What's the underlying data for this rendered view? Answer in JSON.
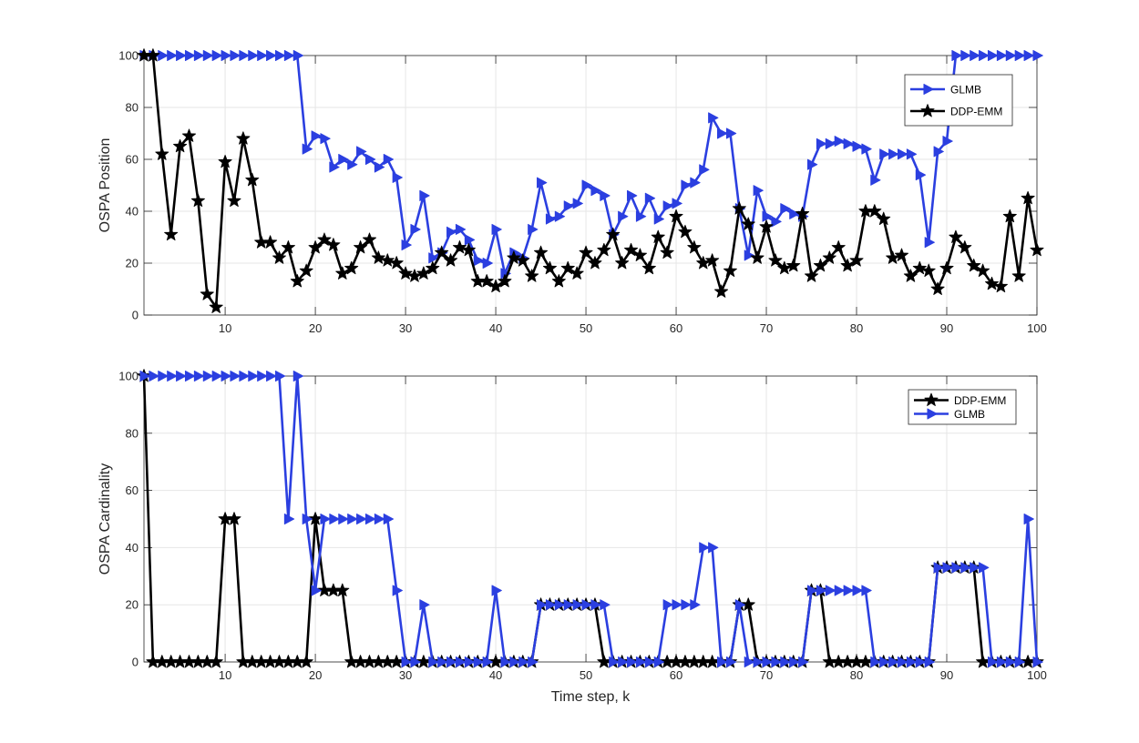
{
  "chart_data": [
    {
      "type": "line",
      "xlabel": "",
      "ylabel": "OSPA Position",
      "xlim": [
        1,
        100
      ],
      "ylim": [
        0,
        100
      ],
      "xticks": [
        10,
        20,
        30,
        40,
        50,
        60,
        70,
        80,
        90,
        100
      ],
      "yticks": [
        0,
        20,
        40,
        60,
        80,
        100
      ],
      "grid": true,
      "legend_position": "top-right",
      "series": [
        {
          "name": "GLMB",
          "color": "#2b3fe0",
          "marker": "triangle-right",
          "values": [
            100,
            100,
            100,
            100,
            100,
            100,
            100,
            100,
            100,
            100,
            100,
            100,
            100,
            100,
            100,
            100,
            100,
            100,
            64,
            69,
            68,
            57,
            60,
            58,
            63,
            60,
            57,
            60,
            53,
            27,
            33,
            46,
            22,
            24,
            32,
            33,
            29,
            21,
            20,
            33,
            16,
            24,
            22,
            33,
            51,
            37,
            38,
            42,
            43,
            50,
            48,
            46,
            31,
            38,
            46,
            38,
            45,
            37,
            42,
            43,
            50,
            51,
            56,
            76,
            70,
            70,
            41,
            23,
            48,
            38,
            36,
            41,
            39,
            38,
            58,
            66,
            66,
            67,
            66,
            65,
            64,
            52,
            62,
            62,
            62,
            62,
            54,
            28,
            63,
            67,
            100,
            100,
            100,
            100,
            100,
            100,
            100,
            100,
            100,
            100
          ]
        },
        {
          "name": "DDP-EMM",
          "color": "#000000",
          "marker": "star",
          "values": [
            100,
            100,
            62,
            31,
            65,
            69,
            44,
            8,
            3,
            59,
            44,
            68,
            52,
            28,
            28,
            22,
            26,
            13,
            17,
            26,
            29,
            27,
            16,
            18,
            26,
            29,
            22,
            21,
            20,
            16,
            15,
            16,
            18,
            24,
            21,
            26,
            25,
            13,
            13,
            11,
            13,
            22,
            21,
            15,
            24,
            18,
            13,
            18,
            16,
            24,
            20,
            25,
            31,
            20,
            25,
            23,
            18,
            30,
            24,
            38,
            32,
            26,
            20,
            21,
            9,
            17,
            41,
            35,
            22,
            34,
            21,
            18,
            19,
            39,
            15,
            19,
            22,
            26,
            19,
            21,
            40,
            40,
            37,
            22,
            23,
            15,
            18,
            17,
            10,
            18,
            30,
            26,
            19,
            17,
            12,
            11,
            38,
            15,
            45,
            25
          ]
        }
      ]
    },
    {
      "type": "line",
      "xlabel": "Time step, k",
      "ylabel": "OSPA Cardinality",
      "xlim": [
        1,
        100
      ],
      "ylim": [
        0,
        100
      ],
      "xticks": [
        10,
        20,
        30,
        40,
        50,
        60,
        70,
        80,
        90,
        100
      ],
      "yticks": [
        0,
        20,
        40,
        60,
        80,
        100
      ],
      "grid": true,
      "legend_position": "top-right",
      "series": [
        {
          "name": "DDP-EMM",
          "color": "#000000",
          "marker": "star",
          "values": [
            100,
            0,
            0,
            0,
            0,
            0,
            0,
            0,
            0,
            50,
            50,
            0,
            0,
            0,
            0,
            0,
            0,
            0,
            0,
            50,
            25,
            25,
            25,
            0,
            0,
            0,
            0,
            0,
            0,
            0,
            0,
            0,
            0,
            0,
            0,
            0,
            0,
            0,
            0,
            0,
            0,
            0,
            0,
            0,
            20,
            20,
            20,
            20,
            20,
            20,
            20,
            0,
            0,
            0,
            0,
            0,
            0,
            0,
            0,
            0,
            0,
            0,
            0,
            0,
            0,
            0,
            20,
            20,
            0,
            0,
            0,
            0,
            0,
            0,
            25,
            25,
            0,
            0,
            0,
            0,
            0,
            0,
            0,
            0,
            0,
            0,
            0,
            0,
            33,
            33,
            33,
            33,
            33,
            0,
            0,
            0,
            0,
            0,
            0,
            0
          ]
        },
        {
          "name": "GLMB",
          "color": "#2b3fe0",
          "marker": "triangle-right",
          "values": [
            100,
            100,
            100,
            100,
            100,
            100,
            100,
            100,
            100,
            100,
            100,
            100,
            100,
            100,
            100,
            100,
            50,
            100,
            50,
            25,
            50,
            50,
            50,
            50,
            50,
            50,
            50,
            50,
            25,
            0,
            0,
            20,
            0,
            0,
            0,
            0,
            0,
            0,
            0,
            25,
            0,
            0,
            0,
            0,
            20,
            20,
            20,
            20,
            20,
            20,
            20,
            20,
            0,
            0,
            0,
            0,
            0,
            0,
            20,
            20,
            20,
            20,
            40,
            40,
            0,
            0,
            20,
            0,
            0,
            0,
            0,
            0,
            0,
            0,
            25,
            25,
            25,
            25,
            25,
            25,
            25,
            0,
            0,
            0,
            0,
            0,
            0,
            0,
            33,
            33,
            33,
            33,
            33,
            33,
            0,
            0,
            0,
            0,
            50,
            0
          ]
        }
      ]
    }
  ]
}
